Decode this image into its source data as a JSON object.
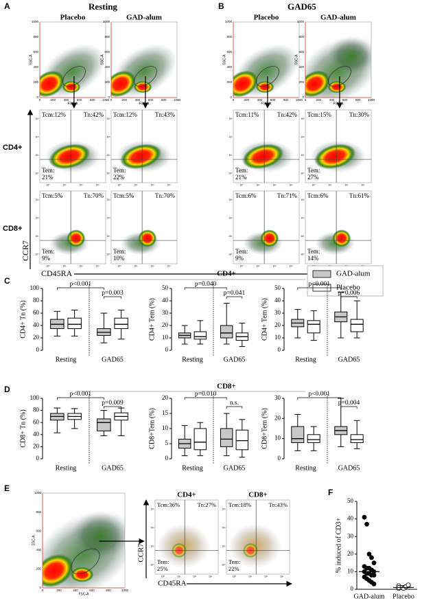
{
  "panel_a": {
    "label": "A",
    "title": "Resting",
    "columns": [
      "Placebo",
      "GAD-alum"
    ]
  },
  "panel_b": {
    "label": "B",
    "title": "GAD65",
    "columns": [
      "Placebo",
      "GAD-alum"
    ]
  },
  "scatter_axes": {
    "x": "FSC-A",
    "y": "SSC-A",
    "ticks": [
      0,
      200,
      400,
      600,
      800,
      1000
    ]
  },
  "log_ticks": [
    "10⁰",
    "10¹",
    "10²",
    "10³"
  ],
  "quadrant_axes": {
    "y": "CCR7",
    "x": "CD45RA"
  },
  "flow_rows": [
    {
      "label": "CD4+",
      "plots": [
        {
          "tcm": "Tcm:12%",
          "tn": "Tn:42%",
          "tem": "Tem:",
          "tem_value": "21%"
        },
        {
          "tcm": "Tcm:12%",
          "tn": "Tn:43%",
          "tem": "Tem:",
          "tem_value": "22%"
        },
        {
          "tcm": "Tcm:11%",
          "tn": "Tn:42%",
          "tem": "Tem:",
          "tem_value": "21%"
        },
        {
          "tcm": "Tcm:15%",
          "tn": "Tn:30%",
          "tem": "Tem:",
          "tem_value": "27%"
        }
      ]
    },
    {
      "label": "CD8+",
      "plots": [
        {
          "tcm": "Tcm:5%",
          "tn": "Tn:70%",
          "tem": "Tem:",
          "tem_value": "9%"
        },
        {
          "tcm": "Tcm:5%",
          "tn": "Tn:70%",
          "tem": "Tem:",
          "tem_value": "10%"
        },
        {
          "tcm": "Tcm:6%",
          "tn": "Tn:71%",
          "tem": "Tem:",
          "tem_value": "9%"
        },
        {
          "tcm": "Tcm:6%",
          "tn": "Tn:61%",
          "tem": "Tem:",
          "tem_value": "14%"
        }
      ]
    }
  ],
  "sections": [
    {
      "label": "C",
      "title": "CD4+"
    },
    {
      "label": "D",
      "title": "CD8+"
    }
  ],
  "chart_data": [
    {
      "type": "box",
      "ylabel": "CD4+ Tn (%)",
      "ylim": [
        0,
        100
      ],
      "yticks": [
        0,
        20,
        40,
        60,
        80,
        100
      ],
      "categories": [
        "Resting",
        "GAD65"
      ],
      "series": [
        {
          "name": "GAD-alum",
          "color": "#c8c8c8",
          "values": [
            [
              23,
              35,
              42,
              50,
              63
            ],
            [
              12,
              24,
              29,
              35,
              60
            ]
          ]
        },
        {
          "name": "Placebo",
          "color": "#ffffff",
          "values": [
            [
              23,
              35,
              42,
              52,
              65
            ],
            [
              18,
              35,
              42,
              52,
              65
            ]
          ]
        }
      ],
      "comparisons": [
        "p<0.001",
        "p=0.003"
      ]
    },
    {
      "type": "box",
      "ylabel": "CD4+ Tem (%)",
      "ylim": [
        0,
        50
      ],
      "yticks": [
        0,
        10,
        20,
        30,
        40,
        50
      ],
      "categories": [
        "Resting",
        "GAD65"
      ],
      "series": [
        {
          "name": "GAD-alum",
          "color": "#c8c8c8",
          "values": [
            [
              5,
              10,
              12,
              14,
              20
            ],
            [
              5,
              10,
              14,
              20,
              38
            ]
          ]
        },
        {
          "name": "Placebo",
          "color": "#ffffff",
          "values": [
            [
              5,
              9,
              11,
              15,
              24
            ],
            [
              3,
              8,
              11,
              14,
              22
            ]
          ]
        }
      ],
      "comparisons": [
        "p=0.040",
        "p=0.041"
      ]
    },
    {
      "type": "box",
      "ylabel": "CD4+ Tem (%)",
      "ylim": [
        0,
        50
      ],
      "yticks": [
        0,
        10,
        20,
        30,
        40,
        50
      ],
      "categories": [
        "Resting",
        "GAD65"
      ],
      "series": [
        {
          "name": "GAD-alum",
          "color": "#c8c8c8",
          "values": [
            [
              10,
              19,
              22,
              25,
              33
            ],
            [
              10,
              23,
              27,
              31,
              47
            ]
          ]
        },
        {
          "name": "Placebo",
          "color": "#ffffff",
          "values": [
            [
              8,
              14,
              21,
              24,
              32
            ],
            [
              10,
              15,
              21,
              25,
              40
            ]
          ]
        }
      ],
      "comparisons": [
        "p<0.001",
        "p=0.006"
      ]
    },
    {
      "type": "box",
      "ylabel": "CD8+ Tn (%)",
      "ylim": [
        0,
        100
      ],
      "yticks": [
        0,
        20,
        40,
        60,
        80,
        100
      ],
      "categories": [
        "Resting",
        "GAD65"
      ],
      "series": [
        {
          "name": "GAD-alum",
          "color": "#c8c8c8",
          "values": [
            [
              43,
              64,
              70,
              75,
              84
            ],
            [
              38,
              46,
              60,
              66,
              80
            ]
          ]
        },
        {
          "name": "Placebo",
          "color": "#ffffff",
          "values": [
            [
              50,
              65,
              70,
              75,
              83
            ],
            [
              38,
              64,
              70,
              76,
              84
            ]
          ]
        }
      ],
      "comparisons": [
        "p<0.001",
        "p=0.009"
      ]
    },
    {
      "type": "box",
      "ylabel": "CD8+Tem (%)",
      "ylim": [
        0,
        20
      ],
      "yticks": [
        0,
        5,
        10,
        15,
        20
      ],
      "categories": [
        "Resting",
        "GAD65"
      ],
      "series": [
        {
          "name": "GAD-alum",
          "color": "#c8c8c8",
          "values": [
            [
              1,
              3.5,
              5,
              6.5,
              11
            ],
            [
              1,
              4,
              6.5,
              10,
              15
            ]
          ]
        },
        {
          "name": "Placebo",
          "color": "#ffffff",
          "values": [
            [
              1,
              3,
              5.5,
              10,
              12
            ],
            [
              0.5,
              3,
              6,
              9.5,
              13
            ]
          ]
        }
      ],
      "comparisons": [
        "p=0.010",
        "n.s."
      ]
    },
    {
      "type": "box",
      "ylabel": "CD8+Tem (%)",
      "ylim": [
        0,
        30
      ],
      "yticks": [
        0,
        10,
        20,
        30
      ],
      "categories": [
        "Resting",
        "GAD65"
      ],
      "series": [
        {
          "name": "GAD-alum",
          "color": "#c8c8c8",
          "values": [
            [
              4,
              8,
              10,
              16,
              22
            ],
            [
              6,
              12,
              14,
              16,
              30
            ]
          ]
        },
        {
          "name": "Placebo",
          "color": "#ffffff",
          "values": [
            [
              4,
              8,
              9.5,
              12,
              16
            ],
            [
              5,
              8,
              9.5,
              12,
              19
            ]
          ]
        }
      ],
      "comparisons": [
        "p<0.001",
        "p=0.004"
      ]
    },
    {
      "type": "strip",
      "ylabel": "% induced of CD3+",
      "ylim": [
        0,
        50
      ],
      "yticks": [
        0,
        10,
        20,
        30,
        40,
        50
      ],
      "series": [
        {
          "name": "GAD-alum",
          "color": "#000000",
          "values": [
            41,
            37,
            20,
            18,
            15,
            13,
            12,
            12,
            11,
            10,
            10,
            9,
            9,
            8,
            8,
            7,
            6,
            5,
            4,
            3
          ],
          "median": 10
        },
        {
          "name": "Placebo",
          "color": "#ffffff",
          "values": [
            0.5,
            1,
            1,
            1.5,
            2,
            2,
            1,
            0.5,
            1.5,
            2.5,
            1
          ],
          "median": 1
        }
      ]
    }
  ],
  "panel_e": {
    "label": "E",
    "plots": [
      {
        "title": "CD4+",
        "tcm": "Tcm:36%",
        "tn": "Tn:27%",
        "tem": "Tem:",
        "tem_value": "25%"
      },
      {
        "title": "CD8+",
        "tcm": "Tcm:18%",
        "tn": "Tn:43%",
        "tem": "Tem:",
        "tem_value": "22%"
      }
    ]
  },
  "panel_f": {
    "label": "F"
  }
}
